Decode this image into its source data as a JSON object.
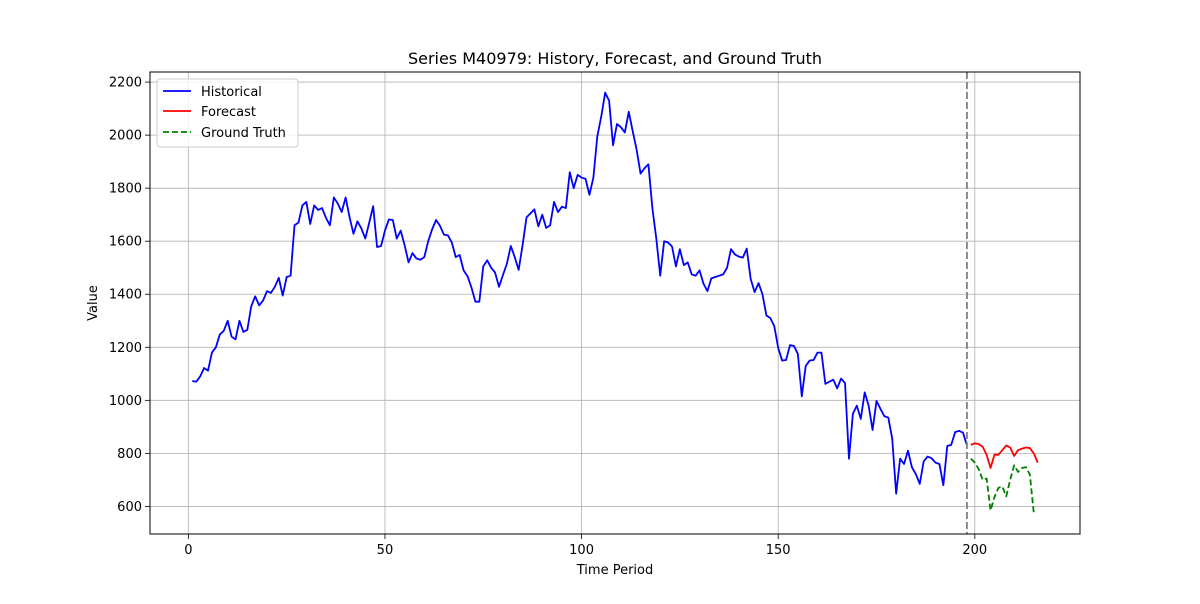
{
  "chart_data": {
    "type": "line",
    "title": "Series M40979: History, Forecast, and Ground Truth",
    "xlabel": "Time Period",
    "ylabel": "Value",
    "xlim": [
      -9.75,
      226.75
    ],
    "ylim": [
      496,
      2238
    ],
    "xticks": [
      0,
      50,
      100,
      150,
      200
    ],
    "yticks": [
      600,
      800,
      1000,
      1200,
      1400,
      1600,
      1800,
      2000,
      2200
    ],
    "grid": true,
    "legend_position": "top-left",
    "vline": {
      "x": 198,
      "color": "#808080",
      "style": "dashed"
    },
    "series": [
      {
        "name": "Historical",
        "color": "#0000ff",
        "style": "solid",
        "x_start": 1,
        "values": [
          1073,
          1070,
          1090,
          1122,
          1112,
          1180,
          1200,
          1248,
          1262,
          1300,
          1240,
          1230,
          1300,
          1258,
          1266,
          1355,
          1392,
          1358,
          1376,
          1412,
          1405,
          1428,
          1462,
          1395,
          1465,
          1470,
          1660,
          1670,
          1735,
          1748,
          1665,
          1735,
          1718,
          1725,
          1688,
          1660,
          1765,
          1742,
          1710,
          1765,
          1690,
          1628,
          1675,
          1648,
          1610,
          1670,
          1732,
          1578,
          1582,
          1640,
          1682,
          1680,
          1610,
          1640,
          1585,
          1520,
          1555,
          1535,
          1530,
          1540,
          1600,
          1645,
          1680,
          1658,
          1625,
          1622,
          1595,
          1540,
          1548,
          1490,
          1468,
          1425,
          1372,
          1372,
          1505,
          1528,
          1500,
          1482,
          1428,
          1472,
          1515,
          1582,
          1540,
          1492,
          1585,
          1690,
          1705,
          1720,
          1656,
          1700,
          1650,
          1660,
          1748,
          1710,
          1730,
          1725,
          1860,
          1800,
          1850,
          1840,
          1835,
          1775,
          1840,
          1995,
          2070,
          2160,
          2130,
          1962,
          2042,
          2030,
          2010,
          2088,
          2015,
          1945,
          1855,
          1875,
          1890,
          1725,
          1610,
          1470,
          1600,
          1595,
          1580,
          1505,
          1570,
          1510,
          1520,
          1475,
          1470,
          1490,
          1440,
          1412,
          1460,
          1465,
          1470,
          1475,
          1500,
          1570,
          1550,
          1542,
          1538,
          1572,
          1458,
          1408,
          1442,
          1400,
          1320,
          1310,
          1280,
          1198,
          1150,
          1152,
          1208,
          1205,
          1175,
          1015,
          1130,
          1150,
          1152,
          1180,
          1180,
          1062,
          1070,
          1078,
          1045,
          1082,
          1065,
          780,
          950,
          980,
          930,
          1030,
          980,
          888,
          998,
          968,
          940,
          935,
          855,
          648,
          780,
          760,
          810,
          748,
          722,
          685,
          770,
          788,
          782,
          765,
          760,
          680,
          828,
          832,
          880,
          885,
          878,
          830
        ]
      },
      {
        "name": "Forecast",
        "color": "#ff0000",
        "style": "solid",
        "x_start": 199,
        "values": [
          832,
          838,
          835,
          825,
          795,
          745,
          795,
          795,
          812,
          830,
          822,
          790,
          812,
          818,
          822,
          820,
          800,
          765
        ]
      },
      {
        "name": "Ground Truth",
        "color": "#008000",
        "style": "dashed",
        "x_start": 199,
        "values": [
          780,
          765,
          740,
          700,
          705,
          585,
          635,
          670,
          675,
          638,
          700,
          755,
          730,
          745,
          748,
          720,
          575
        ]
      }
    ]
  }
}
